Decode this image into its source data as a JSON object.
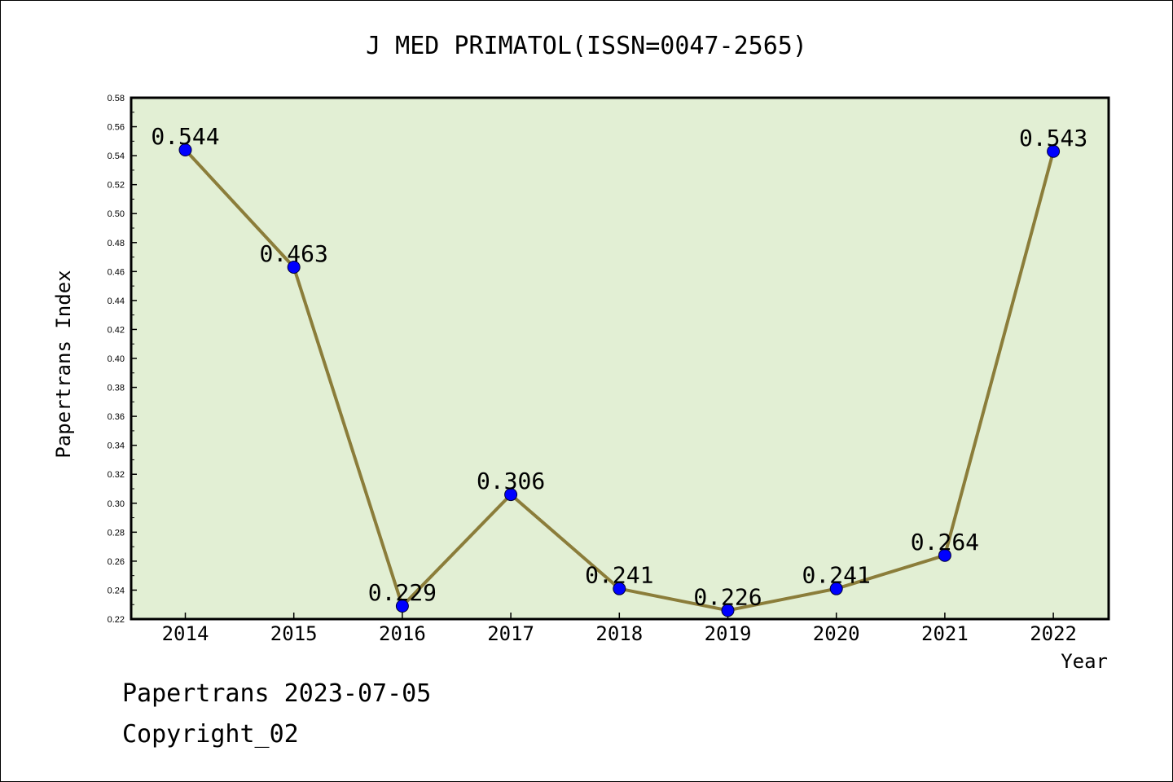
{
  "chart_data": {
    "type": "line",
    "title": "J MED PRIMATOL(ISSN=0047-2565)",
    "xlabel": "Year",
    "ylabel": "Papertrans Index",
    "ylim": [
      0.22,
      0.58
    ],
    "y_ticks": [
      "0.22",
      "0.24",
      "0.26",
      "0.28",
      "0.30",
      "0.32",
      "0.34",
      "0.36",
      "0.38",
      "0.40",
      "0.42",
      "0.44",
      "0.46",
      "0.48",
      "0.50",
      "0.52",
      "0.54",
      "0.56",
      "0.58"
    ],
    "categories": [
      "2014",
      "2015",
      "2016",
      "2017",
      "2018",
      "2019",
      "2020",
      "2021",
      "2022"
    ],
    "values": [
      0.544,
      0.463,
      0.229,
      0.306,
      0.241,
      0.226,
      0.241,
      0.264,
      0.543
    ],
    "labels": [
      "0.544",
      "0.463",
      "0.229",
      "0.306",
      "0.241",
      "0.226",
      "0.241",
      "0.264",
      "0.543"
    ],
    "colors": {
      "plot_bg": "#e2efd4",
      "line": "#8b7d3a",
      "marker": "#0000ff",
      "axis": "#000000"
    }
  },
  "footer": {
    "date_line": "Papertrans 2023-07-05",
    "copyright": "Copyright_02"
  }
}
